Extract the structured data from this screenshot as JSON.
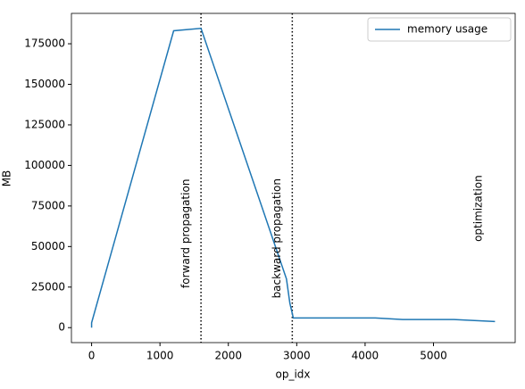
{
  "chart_data": {
    "type": "line",
    "xlabel": "op_idx",
    "ylabel": "MB",
    "x": [
      0,
      0,
      1200,
      1600,
      2850,
      2900,
      2950,
      4150,
      4550,
      5300,
      5900
    ],
    "series": [
      {
        "name": "memory usage",
        "color": "#1f77b4",
        "values": [
          0,
          3000,
          183000,
          184500,
          30000,
          15000,
          6000,
          6000,
          5000,
          5000,
          3800
        ]
      }
    ],
    "vlines": [
      1600,
      2935
    ],
    "annotations": [
      {
        "text": "forward propagation",
        "x": 1380,
        "y": 58000
      },
      {
        "text": "backward propagation",
        "x": 2714,
        "y": 55000
      },
      {
        "text": "optimization",
        "x": 5660,
        "y": 73500
      }
    ],
    "xlim": [
      -295,
      6195
    ],
    "ylim": [
      -9225,
      193725
    ],
    "xticks": [
      0,
      1000,
      2000,
      3000,
      4000,
      5000
    ],
    "yticks": [
      0,
      25000,
      50000,
      75000,
      100000,
      125000,
      150000,
      175000
    ],
    "legend": "upper right"
  }
}
